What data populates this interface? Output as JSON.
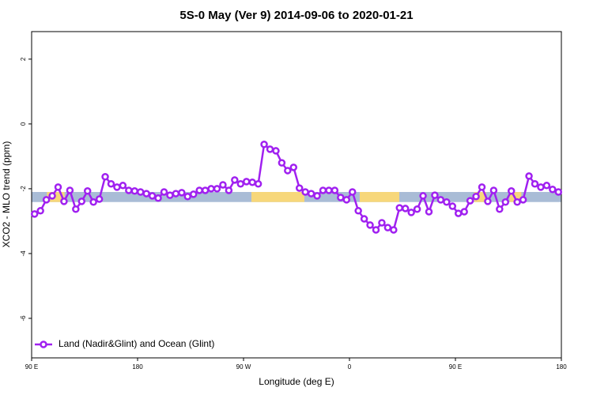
{
  "chart_data": {
    "type": "line",
    "title": "5S-0 May (Ver 9)   2014-09-06 to 2020-01-21",
    "x_label": "Longitude (deg E)",
    "y_label": "XCO2 - MLO trend (ppm)",
    "xlim": [
      90,
      540
    ],
    "ylim": [
      -7.22,
      2.85
    ],
    "xticks": [
      {
        "value": 90,
        "label": "90 E"
      },
      180,
      {
        "value": 270,
        "label": "90 W"
      },
      {
        "value": 360,
        "label": "0"
      },
      {
        "value": 450,
        "label": "90 E"
      },
      {
        "value": 540,
        "label": "180"
      }
    ],
    "yticks": [
      -6,
      -4,
      -2,
      0,
      2
    ],
    "band_y": [
      -2.41,
      -2.1
    ],
    "band_segments": [
      {
        "xlim": [
          90,
          540
        ],
        "color": "#a9bcd6"
      },
      {
        "xlim": [
          103,
          118
        ],
        "color": "#f7d77a"
      },
      {
        "xlim": [
          276.7,
          321.7
        ],
        "color": "#f7d77a"
      },
      {
        "xlim": [
          368.7,
          402.3
        ],
        "color": "#f7d77a"
      },
      {
        "xlim": [
          466,
          476
        ],
        "color": "#f7d77a"
      },
      {
        "xlim": [
          496,
          506
        ],
        "color": "#f7d77a"
      }
    ],
    "legend": "bottom-left",
    "x": [
      92.5,
      97.5,
      102.5,
      107.5,
      112.5,
      117.5,
      122.5,
      127.5,
      132.5,
      137.5,
      142.5,
      147.5,
      152.5,
      157.5,
      162.5,
      167.5,
      172.5,
      177.5,
      182.5,
      187.5,
      192.5,
      197.5,
      202.5,
      207.5,
      212.5,
      217.5,
      222.5,
      227.5,
      232.5,
      237.5,
      242.5,
      247.5,
      252.5,
      257.5,
      262.5,
      267.5,
      272.5,
      277.5,
      282.5,
      287.5,
      292.5,
      297.5,
      302.5,
      307.5,
      312.5,
      317.5,
      322.5,
      327.5,
      332.5,
      337.5,
      342.5,
      347.5,
      352.5,
      357.5,
      362.5,
      367.5,
      372.5,
      377.5,
      382.5,
      387.5,
      392.5,
      397.5,
      402.5,
      407.5,
      412.5,
      417.5,
      422.5,
      427.5,
      432.5,
      437.5,
      442.5,
      447.5,
      452.5,
      457.5,
      462.5,
      467.5,
      472.5,
      477.5,
      482.5,
      487.5,
      492.5,
      497.5,
      502.5,
      507.5,
      512.5,
      517.5,
      522.5,
      527.5,
      532.5,
      537.5
    ],
    "series": [
      {
        "name": "Land (Nadir&Glint) and Ocean (Glint)",
        "color": "#a020f0",
        "values": [
          -2.78,
          -2.68,
          -2.34,
          -2.22,
          -1.95,
          -2.39,
          -2.05,
          -2.63,
          -2.39,
          -2.07,
          -2.41,
          -2.32,
          -1.63,
          -1.85,
          -1.95,
          -1.9,
          -2.05,
          -2.07,
          -2.1,
          -2.15,
          -2.22,
          -2.29,
          -2.1,
          -2.2,
          -2.15,
          -2.12,
          -2.24,
          -2.17,
          -2.05,
          -2.05,
          -2.0,
          -2.0,
          -1.88,
          -2.05,
          -1.73,
          -1.85,
          -1.78,
          -1.8,
          -1.85,
          -0.63,
          -0.78,
          -0.83,
          -1.2,
          -1.44,
          -1.34,
          -1.98,
          -2.1,
          -2.15,
          -2.22,
          -2.05,
          -2.05,
          -2.05,
          -2.27,
          -2.34,
          -2.1,
          -2.68,
          -2.93,
          -3.12,
          -3.27,
          -3.05,
          -3.2,
          -3.27,
          -2.59,
          -2.61,
          -2.73,
          -2.63,
          -2.22,
          -2.71,
          -2.2,
          -2.34,
          -2.41,
          -2.54,
          -2.76,
          -2.71,
          -2.37,
          -2.24,
          -1.95,
          -2.39,
          -2.05,
          -2.63,
          -2.41,
          -2.07,
          -2.41,
          -2.34,
          -1.61,
          -1.85,
          -1.95,
          -1.9,
          -2.02,
          -2.1
        ]
      }
    ]
  }
}
